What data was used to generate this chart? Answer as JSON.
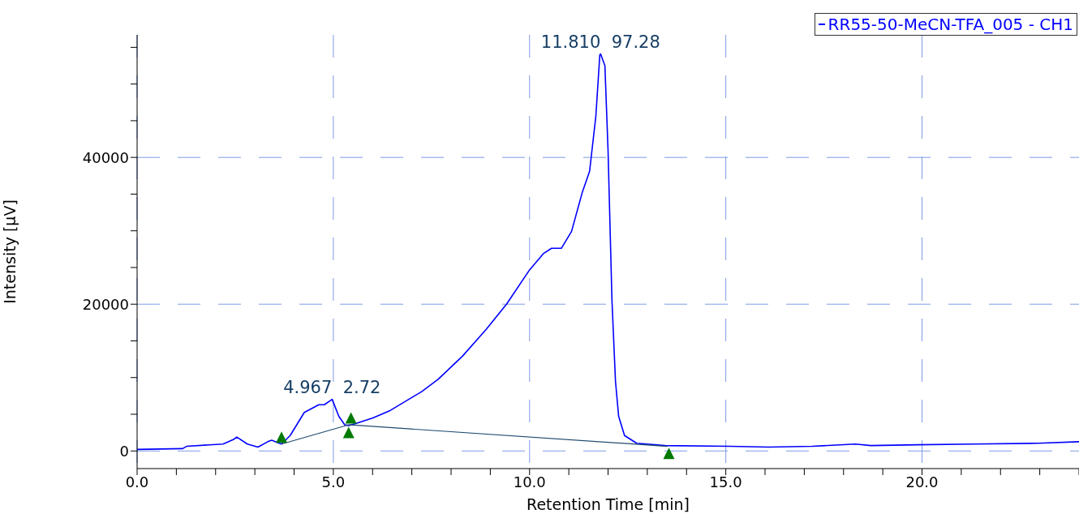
{
  "chart_data": {
    "type": "line",
    "xlabel": "Retention Time [min]",
    "ylabel": "Intensity [µV]",
    "xlim": [
      0,
      24
    ],
    "ylim": [
      -2400,
      56700
    ],
    "xticks": [
      {
        "value": 0,
        "label": "0.0"
      },
      {
        "value": 1,
        "label": null
      },
      {
        "value": 2,
        "label": null
      },
      {
        "value": 3,
        "label": null
      },
      {
        "value": 4,
        "label": null
      },
      {
        "value": 5,
        "label": "5.0"
      },
      {
        "value": 6,
        "label": null
      },
      {
        "value": 7,
        "label": null
      },
      {
        "value": 8,
        "label": null
      },
      {
        "value": 9,
        "label": null
      },
      {
        "value": 10,
        "label": "10.0"
      },
      {
        "value": 11,
        "label": null
      },
      {
        "value": 12,
        "label": null
      },
      {
        "value": 13,
        "label": null
      },
      {
        "value": 14,
        "label": null
      },
      {
        "value": 15,
        "label": "15.0"
      },
      {
        "value": 16,
        "label": null
      },
      {
        "value": 17,
        "label": null
      },
      {
        "value": 18,
        "label": null
      },
      {
        "value": 19,
        "label": null
      },
      {
        "value": 20,
        "label": "20.0"
      },
      {
        "value": 21,
        "label": null
      },
      {
        "value": 22,
        "label": null
      },
      {
        "value": 23,
        "label": null
      },
      {
        "value": 24,
        "label": null
      }
    ],
    "yticks": [
      0,
      {
        "value": 5000,
        "label": null
      },
      {
        "value": 10000,
        "label": null
      },
      {
        "value": 15000,
        "label": null
      },
      20000,
      {
        "value": 25000,
        "label": null
      },
      {
        "value": 30000,
        "label": null
      },
      {
        "value": 35000,
        "label": null
      },
      40000,
      {
        "value": 45000,
        "label": null
      },
      {
        "value": 50000,
        "label": null
      },
      {
        "value": 55000,
        "label": null
      }
    ],
    "grid": true,
    "legend": "top right",
    "series": [
      {
        "name": "RR55-50-MeCN-TFA_005 - CH1",
        "color": "#0000ff",
        "marker": "none",
        "x": [
          0,
          1.16,
          1.26,
          2.19,
          2.46,
          2.54,
          2.81,
          3.08,
          3.33,
          3.43,
          3.62,
          3.68,
          3.9,
          4.26,
          4.63,
          4.77,
          4.94,
          4.97,
          5.14,
          5.29,
          5.39,
          5.6,
          6.01,
          6.43,
          7.25,
          7.67,
          8.29,
          8.9,
          9.42,
          10.0,
          10.35,
          10.56,
          10.81,
          11.07,
          11.34,
          11.53,
          11.69,
          11.79,
          11.81,
          11.92,
          12.0,
          12.1,
          12.19,
          12.27,
          12.42,
          12.73,
          13.45,
          15.1,
          16.1,
          17.2,
          18.3,
          18.7,
          19.9,
          21.3,
          22.95,
          24
        ],
        "values": [
          210,
          315,
          630,
          945,
          1575,
          1890,
          945,
          525,
          1260,
          1470,
          1050,
          945,
          2100,
          5250,
          6300,
          6300,
          6930,
          7035,
          4725,
          3570,
          3465,
          3780,
          4515,
          5460,
          8085,
          9765,
          12915,
          16590,
          20055,
          24675,
          26880,
          27615,
          27615,
          29925,
          35175,
          38115,
          45675,
          53970,
          54100,
          52500,
          40950,
          20475,
          9450,
          4725,
          2100,
          1050,
          735,
          630,
          525,
          630,
          945,
          735,
          840,
          945,
          1050,
          1260
        ]
      },
      {
        "color": "#1f4a6e",
        "marker": "none",
        "x": [
          3.68,
          5.39,
          13.51
        ],
        "values": [
          945,
          3570,
          630
        ]
      },
      {
        "type": "scatter",
        "color": "#007a00",
        "marker": "triangle",
        "x": [
          3.68,
          5.45,
          5.39,
          13.55
        ],
        "values": [
          1890,
          4515,
          2520,
          -315
        ]
      }
    ],
    "annotations": [
      {
        "text": "4.967  2.72",
        "x": 4.967,
        "y": 7035
      },
      {
        "text": "11.810  97.28",
        "x": 11.81,
        "y": 54100
      }
    ]
  }
}
